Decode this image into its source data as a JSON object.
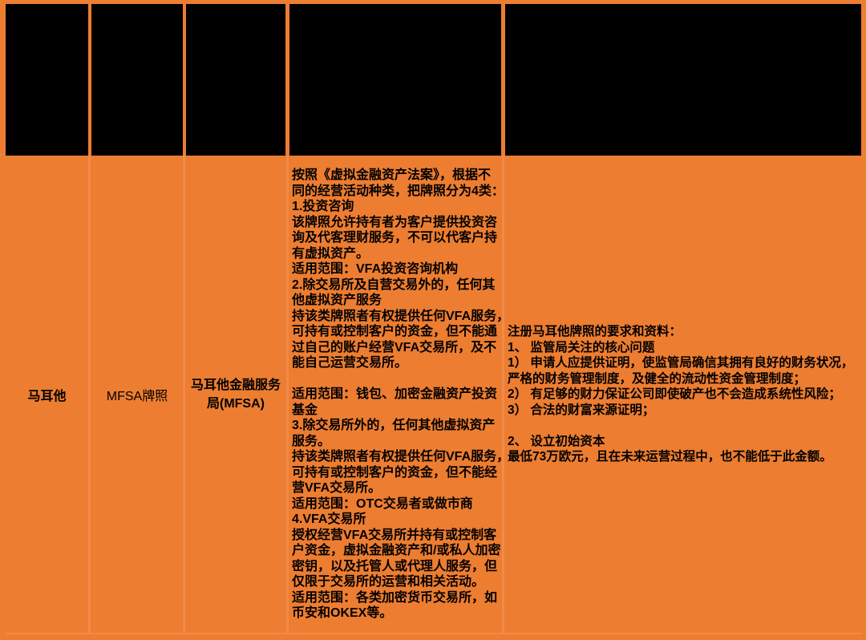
{
  "colors": {
    "table_background": "#ED7D31",
    "header_cell_fill": "#000000",
    "grid_line": "#F08C49",
    "body_text": "#000000"
  },
  "table": {
    "header": {
      "note": "header row cells are blacked out / redacted",
      "cells": [
        "",
        "",
        "",
        "",
        ""
      ]
    },
    "row": {
      "country": "马耳他",
      "license_name": "MFSA牌照",
      "regulator": "马耳他金融服务\n局(MFSA)",
      "license_details": "按照《虚拟金融资产法案》，根据不\n同的经营活动种类，把牌照分为4类：\n1.投资咨询\n该牌照允许持有者为客户提供投资咨\n询及代客理财服务，不可以代客户持\n有虚拟资产。\n适用范围：VFA投资咨询机构\n2.除交易所及自营交易外的，任何其\n他虚拟资产服务\n持该类牌照者有权提供任何VFA服务，\n可持有或控制客户的资金，但不能通\n过自己的账户经营VFA交易所，及不\n能自己运营交易所。\n\n适用范围：钱包、加密金融资产投资\n基金\n3.除交易所外的，任何其他虚拟资产\n服务。\n持该类牌照者有权提供任何VFA服务，\n可持有或控制客户的资金，但不能经\n营VFA交易所。\n适用范围：OTC交易者或做市商\n4.VFA交易所\n授权经营VFA交易所并持有或控制客\n户资金，虚拟金融资产和/或私人加密\n密钥，以及托管人或代理人服务，但\n仅限于交易所的运营和相关活动。\n适用范围：各类加密货币交易所，如\n币安和OKEX等。",
      "requirements": "注册马耳他牌照的要求和资料：\n1、 监管局关注的核心问题\n1） 申请人应提供证明，使监管局确信其拥有良好的财务状况，\n严格的财务管理制度，及健全的流动性资金管理制度；\n2） 有足够的财力保证公司即使破产也不会造成系统性风险；\n3） 合法的财富来源证明；\n\n2、 设立初始资本\n最低73万欧元，且在未来运营过程中，也不能低于此金额。"
    }
  }
}
